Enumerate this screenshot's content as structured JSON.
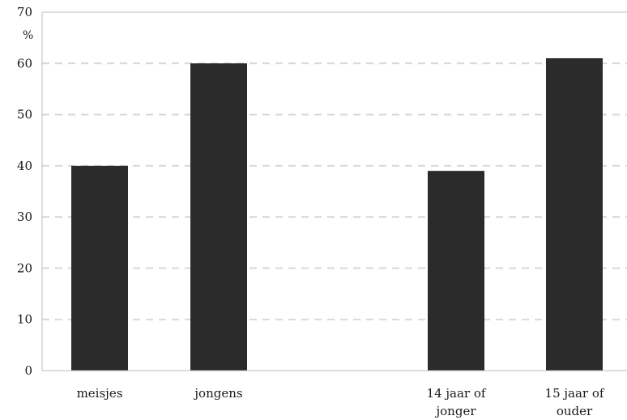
{
  "chart_data": {
    "type": "bar",
    "unit_label": "%",
    "categories": [
      {
        "label_lines": [
          "meisjes"
        ],
        "value": 40
      },
      {
        "label_lines": [
          "jongens"
        ],
        "value": 60
      },
      {
        "label_lines": [
          "14 jaar of",
          "jonger"
        ],
        "value": 39
      },
      {
        "label_lines": [
          "15 jaar of",
          "ouder"
        ],
        "value": 61
      }
    ],
    "ylim": [
      0,
      70
    ],
    "yticks": [
      0,
      10,
      20,
      30,
      40,
      50,
      60,
      70
    ],
    "grid": true,
    "bar_color": "#2b2b2b",
    "grid_color": "#d9d9d9",
    "axis_color": "#bdbdbd"
  }
}
